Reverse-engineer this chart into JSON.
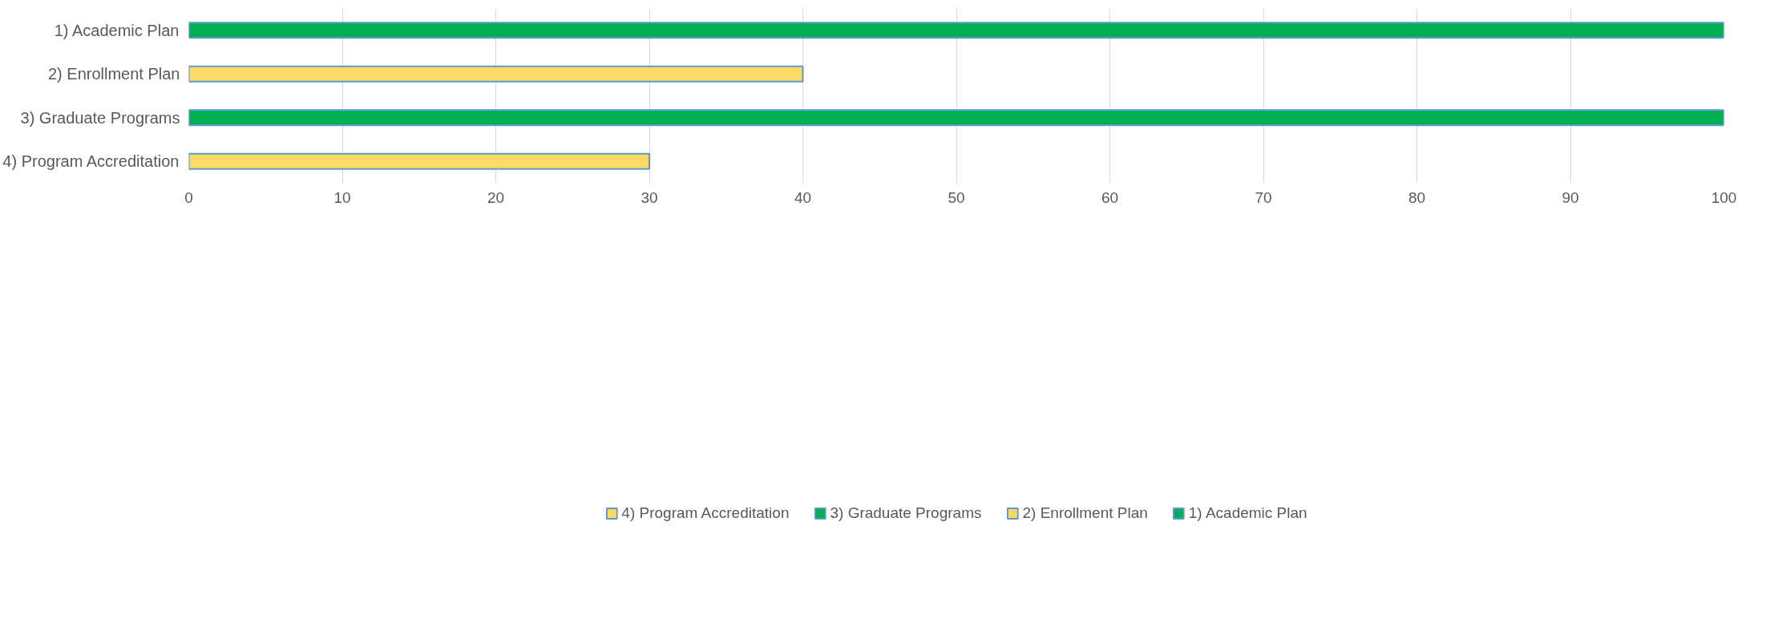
{
  "chart_data": {
    "type": "bar",
    "orientation": "horizontal",
    "categories": [
      "1) Academic Plan",
      "2) Enrollment Plan",
      "3) Graduate Programs",
      "4) Program Accreditation"
    ],
    "series": [
      {
        "name": "4) Program Accreditation",
        "color": "#ffd966",
        "values": [
          null,
          null,
          null,
          30
        ]
      },
      {
        "name": "3) Graduate Programs",
        "color": "#00b050",
        "values": [
          null,
          null,
          100,
          null
        ]
      },
      {
        "name": "2) Enrollment Plan",
        "color": "#ffd966",
        "values": [
          null,
          40,
          null,
          null
        ]
      },
      {
        "name": "1) Academic Plan",
        "color": "#00b050",
        "values": [
          100,
          null,
          null,
          null
        ]
      }
    ],
    "xlim": [
      0,
      100
    ],
    "xticks": [
      0,
      10,
      20,
      30,
      40,
      50,
      60,
      70,
      80,
      90,
      100
    ],
    "grid": "x",
    "legend": "bottom"
  }
}
